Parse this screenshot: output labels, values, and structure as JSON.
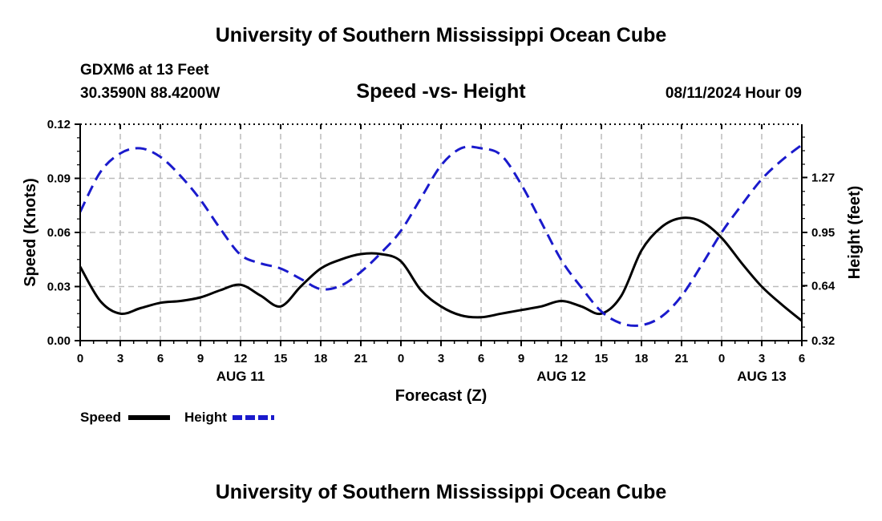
{
  "header": {
    "title": "University of Southern Mississippi Ocean Cube",
    "station": "GDXM6 at 13 Feet",
    "coords": "30.3590N  88.4200W",
    "subtitle": "Speed -vs- Height",
    "datetime": "08/11/2024 Hour 09"
  },
  "footer": {
    "title": "University of Southern Mississippi Ocean Cube"
  },
  "colors": {
    "speed": "#000000",
    "height": "#1a1acc",
    "grid": "#bbbbbb"
  },
  "chart_data": {
    "type": "line",
    "title": "Speed -vs- Height",
    "xlabel": "Forecast (Z)",
    "ylabel": "Speed (Knots)",
    "ylabel_right": "Height (feet)",
    "x_range_hours": [
      0,
      54
    ],
    "ylim": [
      0,
      0.12
    ],
    "ylim_right": [
      0.32,
      1.58
    ],
    "x_ticks": [
      0,
      3,
      6,
      9,
      12,
      15,
      18,
      21,
      24,
      27,
      30,
      33,
      36,
      39,
      42,
      45,
      48,
      51,
      54
    ],
    "x_tick_labels": [
      "0",
      "3",
      "6",
      "9",
      "12",
      "15",
      "18",
      "21",
      "0",
      "3",
      "6",
      "9",
      "12",
      "15",
      "18",
      "21",
      "0",
      "3",
      "6"
    ],
    "date_labels": [
      {
        "label": "AUG 11",
        "hour": 12
      },
      {
        "label": "AUG 12",
        "hour": 36
      },
      {
        "label": "AUG 13",
        "hour": 51
      }
    ],
    "y_ticks": [
      0.0,
      0.03,
      0.06,
      0.09,
      0.12
    ],
    "y_tick_labels": [
      "0.00",
      "0.03",
      "0.06",
      "0.09",
      "0.12"
    ],
    "y_ticks_right": [
      0.32,
      0.64,
      0.95,
      1.27
    ],
    "y_tick_labels_right": [
      "0.32",
      "0.64",
      "0.95",
      "1.27"
    ],
    "grid": true,
    "series": [
      {
        "name": "Speed",
        "axis": "left",
        "style": "solid",
        "x": [
          0,
          1.5,
          3,
          4.5,
          6,
          7.5,
          9,
          10.5,
          12,
          13.5,
          15,
          16.5,
          18,
          19.5,
          21,
          22.5,
          24,
          25.5,
          27,
          28.5,
          30,
          31.5,
          33,
          34.5,
          36,
          37.5,
          39,
          40.5,
          42,
          43.5,
          45,
          46.5,
          48,
          49.5,
          51,
          52.5,
          54
        ],
        "values": [
          0.041,
          0.022,
          0.015,
          0.018,
          0.021,
          0.022,
          0.024,
          0.028,
          0.031,
          0.025,
          0.019,
          0.03,
          0.04,
          0.045,
          0.048,
          0.048,
          0.044,
          0.028,
          0.019,
          0.014,
          0.013,
          0.015,
          0.017,
          0.019,
          0.022,
          0.019,
          0.015,
          0.025,
          0.05,
          0.063,
          0.068,
          0.066,
          0.057,
          0.043,
          0.03,
          0.02,
          0.011
        ]
      },
      {
        "name": "Height",
        "axis": "right",
        "style": "dashed",
        "x": [
          0,
          1.5,
          3,
          4.5,
          6,
          7.5,
          9,
          10.5,
          12,
          13.5,
          15,
          16.5,
          18,
          19.5,
          21,
          22.5,
          24,
          25.5,
          27,
          28.5,
          30,
          31.5,
          33,
          34.5,
          36,
          37.5,
          39,
          40.5,
          42,
          43.5,
          45,
          46.5,
          48,
          49.5,
          51,
          52.5,
          54
        ],
        "values": [
          1.07,
          1.3,
          1.41,
          1.44,
          1.39,
          1.28,
          1.14,
          0.97,
          0.82,
          0.77,
          0.74,
          0.68,
          0.62,
          0.64,
          0.72,
          0.83,
          0.96,
          1.15,
          1.34,
          1.44,
          1.44,
          1.4,
          1.23,
          1.01,
          0.79,
          0.63,
          0.49,
          0.42,
          0.41,
          0.46,
          0.58,
          0.76,
          0.95,
          1.11,
          1.26,
          1.37,
          1.46
        ]
      }
    ],
    "legend": [
      {
        "label": "Speed",
        "series": "Speed"
      },
      {
        "label": "Height",
        "series": "Height"
      }
    ],
    "legend_position": "bottom-left"
  }
}
